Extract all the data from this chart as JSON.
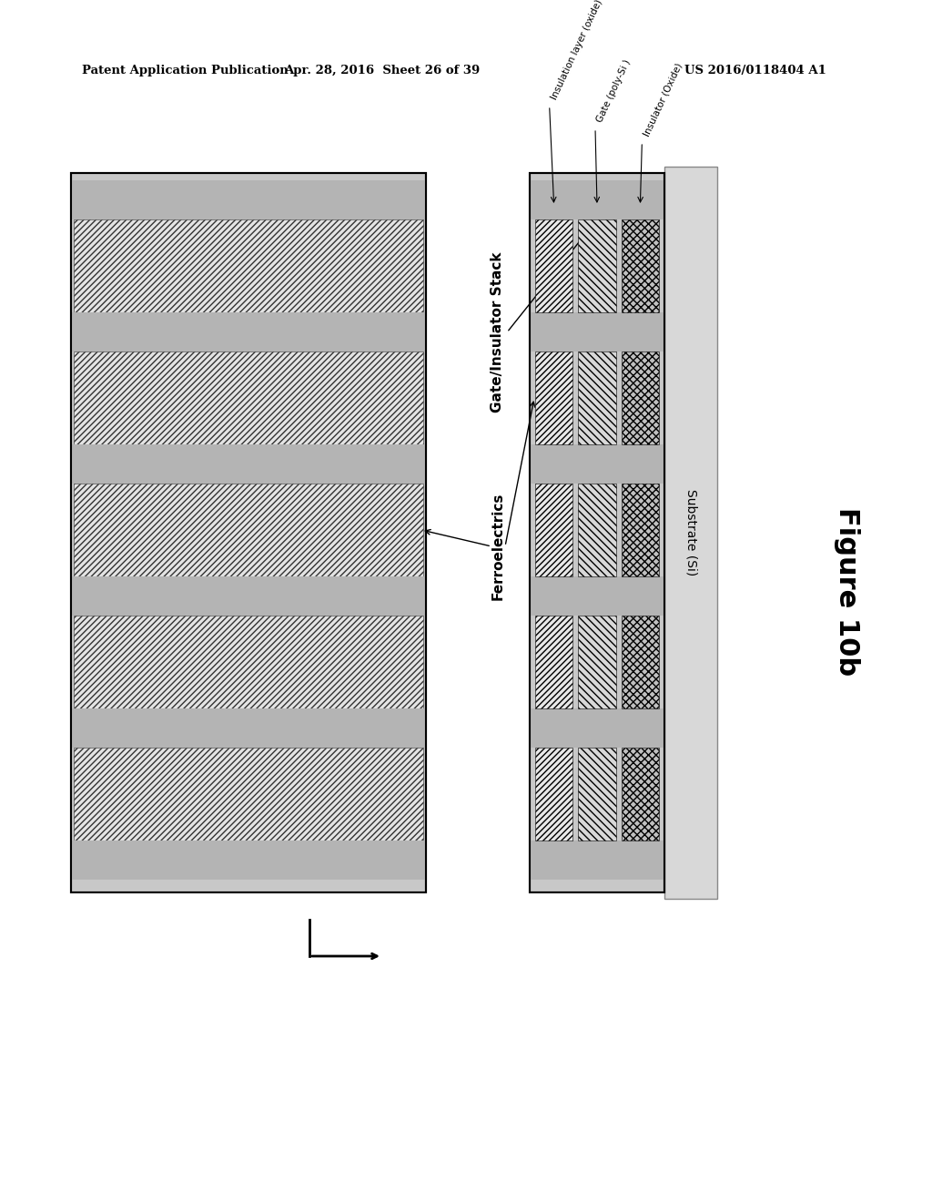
{
  "header_left": "Patent Application Publication",
  "header_mid": "Apr. 28, 2016  Sheet 26 of 39",
  "header_right": "US 2016/0118404 A1",
  "figure_label": "Figure 10b",
  "label_gate_stack": "Gate/Insulator Stack",
  "label_ferro": "Ferroelectrics",
  "label_insulation": "Insulation layer (oxide)",
  "label_gate": "Gate (poly-Si )",
  "label_insulator": "Insulator (Oxide)",
  "label_substrate": "Substrate (Si)",
  "background": "#ffffff",
  "num_ferro_layers": 5,
  "color_outer_bg": "#c8c8c8",
  "color_spacer": "#b4b4b4",
  "color_ferro_bg": "#e4e4e4",
  "color_substrate": "#d8d8d8",
  "color_sub1_bg": "#e8e8e8",
  "color_sub2_bg": "#d8d8d8",
  "color_sub3_bg": "#c0c0c0"
}
